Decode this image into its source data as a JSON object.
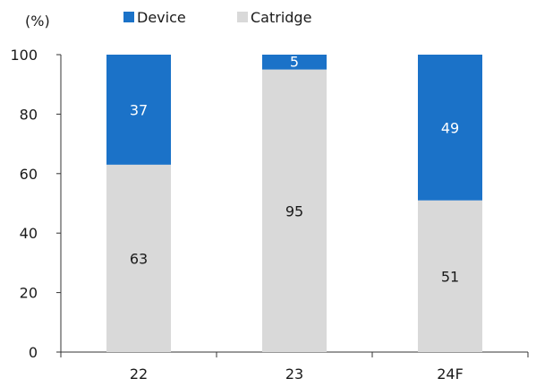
{
  "chart_data": {
    "type": "bar",
    "stacked": true,
    "title": "",
    "xlabel": "",
    "ylabel": "",
    "unit_label": "(%)",
    "categories": [
      "22",
      "23",
      "24F"
    ],
    "series": [
      {
        "name": "Catridge",
        "values": [
          63,
          95,
          51
        ],
        "color": "#d9d9d9",
        "label_color": "#1a1a1a"
      },
      {
        "name": "Device",
        "values": [
          37,
          5,
          49
        ],
        "color": "#1b72c8",
        "label_color": "#ffffff"
      }
    ],
    "legend_order": [
      "Device",
      "Catridge"
    ],
    "legend_position": "top",
    "ylim": [
      0,
      100
    ],
    "yticks": [
      "0",
      "20",
      "40",
      "60",
      "80",
      "100"
    ],
    "grid": false
  }
}
